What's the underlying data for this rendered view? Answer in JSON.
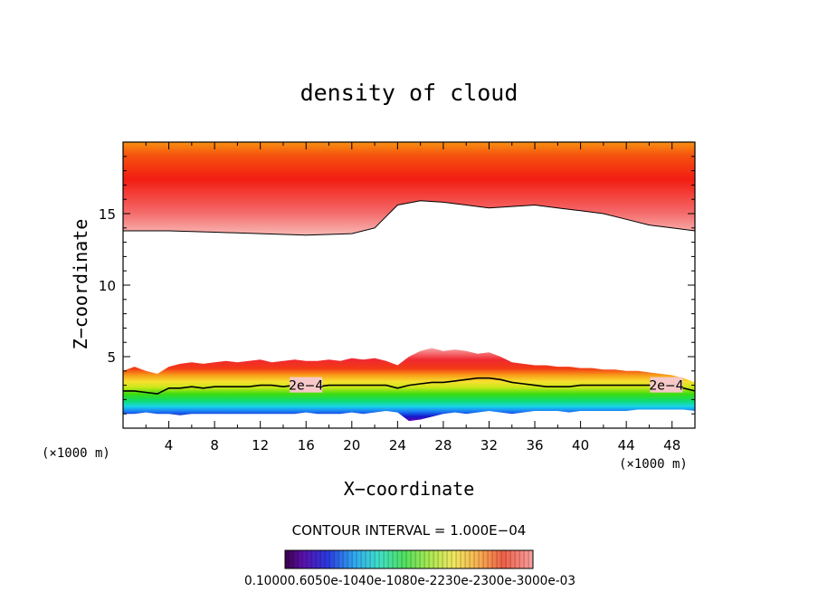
{
  "chart_data": {
    "type": "contour",
    "title": "density of cloud",
    "xlabel": "X−coordinate",
    "ylabel": "Z−coordinate",
    "x_unit": "(×1000 m)",
    "y_unit": "(×1000 m)",
    "xlim": [
      0,
      50
    ],
    "ylim": [
      0,
      20
    ],
    "xticks": [
      4,
      8,
      12,
      16,
      20,
      24,
      28,
      32,
      36,
      40,
      44,
      48
    ],
    "yticks": [
      5,
      10,
      15
    ],
    "contour_interval": "CONTOUR INTERVAL = 1.000E−04",
    "contour_label": "2e−4",
    "contour_label_x": [
      16,
      47.5
    ],
    "colorbar_labels": "0.10000.6050e-1040e-1080e-2230e-2300e-3000e-03",
    "upper_layer": {
      "x": [
        0,
        4,
        8,
        12,
        16,
        20,
        22,
        23,
        24,
        26,
        28,
        30,
        32,
        34,
        36,
        38,
        40,
        42,
        44,
        46,
        48,
        50
      ],
      "base_z": [
        13.8,
        13.8,
        13.7,
        13.6,
        13.5,
        13.6,
        14.0,
        14.8,
        15.6,
        15.9,
        15.8,
        15.6,
        15.4,
        15.5,
        15.6,
        15.4,
        15.2,
        15.0,
        14.6,
        14.2,
        14.0,
        13.8
      ],
      "peak_z": [
        16.0,
        16.1,
        16.4,
        16.7,
        17.1,
        17.5,
        17.6,
        17.7,
        17.8,
        17.7,
        17.5,
        17.3,
        17.1,
        16.9,
        16.7,
        16.6,
        16.5,
        16.4,
        16.3,
        16.3,
        16.2,
        16.2
      ]
    },
    "lower_layer": {
      "x": [
        0,
        1,
        2,
        3,
        4,
        5,
        6,
        7,
        8,
        9,
        10,
        11,
        12,
        13,
        14,
        15,
        16,
        17,
        18,
        19,
        20,
        21,
        22,
        23,
        24,
        25,
        26,
        27,
        28,
        29,
        30,
        31,
        32,
        33,
        34,
        35,
        36,
        37,
        38,
        39,
        40,
        41,
        42,
        43,
        44,
        45,
        46,
        47,
        48,
        49,
        50
      ],
      "top_z": [
        4.0,
        4.3,
        4.0,
        3.8,
        4.3,
        4.5,
        4.6,
        4.5,
        4.6,
        4.7,
        4.6,
        4.7,
        4.8,
        4.6,
        4.7,
        4.8,
        4.7,
        4.7,
        4.8,
        4.7,
        4.9,
        4.8,
        4.9,
        4.7,
        4.4,
        5.0,
        5.4,
        5.6,
        5.4,
        5.5,
        5.4,
        5.2,
        5.3,
        5.0,
        4.6,
        4.5,
        4.4,
        4.4,
        4.3,
        4.3,
        4.2,
        4.2,
        4.1,
        4.1,
        4.0,
        4.0,
        3.9,
        3.8,
        3.7,
        3.5,
        3.2
      ],
      "contour_z": [
        2.6,
        2.6,
        2.5,
        2.4,
        2.8,
        2.8,
        2.9,
        2.8,
        2.9,
        2.9,
        2.9,
        2.9,
        3.0,
        3.0,
        2.9,
        3.0,
        3.0,
        2.9,
        3.0,
        3.0,
        3.0,
        3.0,
        3.0,
        3.0,
        2.8,
        3.0,
        3.1,
        3.2,
        3.2,
        3.3,
        3.4,
        3.5,
        3.5,
        3.4,
        3.2,
        3.1,
        3.0,
        2.9,
        2.9,
        2.9,
        3.0,
        3.0,
        3.0,
        3.0,
        3.0,
        3.0,
        3.0,
        3.0,
        3.0,
        2.8,
        2.6
      ],
      "bottom_z": [
        1.0,
        1.0,
        1.1,
        1.0,
        1.0,
        0.9,
        1.0,
        1.0,
        1.0,
        1.0,
        1.0,
        1.0,
        1.0,
        1.0,
        1.0,
        1.0,
        1.1,
        1.0,
        1.0,
        1.0,
        1.1,
        1.0,
        1.1,
        1.2,
        1.1,
        0.5,
        0.6,
        0.8,
        1.0,
        1.1,
        1.0,
        1.1,
        1.2,
        1.1,
        1.0,
        1.1,
        1.2,
        1.2,
        1.2,
        1.1,
        1.2,
        1.2,
        1.2,
        1.2,
        1.2,
        1.3,
        1.3,
        1.3,
        1.3,
        1.3,
        1.2
      ]
    }
  }
}
